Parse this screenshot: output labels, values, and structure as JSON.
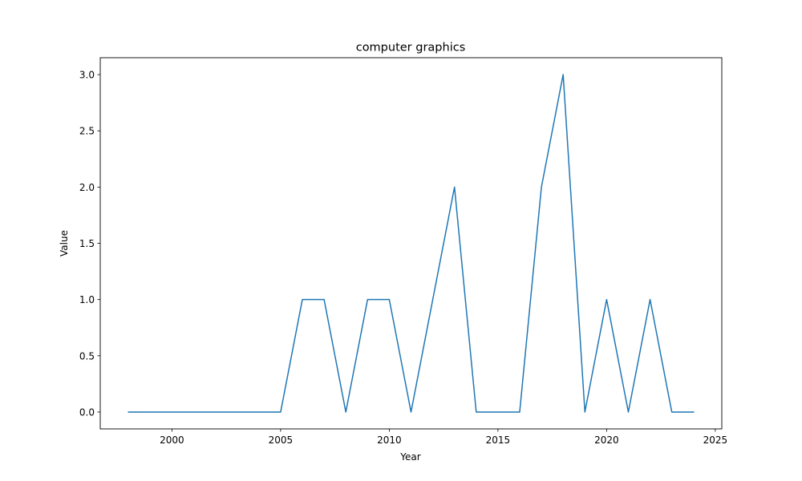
{
  "chart_data": {
    "type": "line",
    "title": "computer graphics",
    "xlabel": "Year",
    "ylabel": "Value",
    "xlim": [
      1996.7,
      2025.3
    ],
    "ylim": [
      -0.15,
      3.15
    ],
    "xticks": [
      2000,
      2005,
      2010,
      2015,
      2020,
      2025
    ],
    "yticks": [
      0.0,
      0.5,
      1.0,
      1.5,
      2.0,
      2.5,
      3.0
    ],
    "xtick_labels": [
      "2000",
      "2005",
      "2010",
      "2015",
      "2020",
      "2025"
    ],
    "ytick_labels": [
      "0.0",
      "0.5",
      "1.0",
      "1.5",
      "2.0",
      "2.5",
      "3.0"
    ],
    "grid": false,
    "series": [
      {
        "color": "#1f77b4",
        "x": [
          1998,
          1999,
          2000,
          2001,
          2002,
          2003,
          2004,
          2005,
          2006,
          2007,
          2008,
          2009,
          2010,
          2011,
          2012,
          2013,
          2014,
          2015,
          2016,
          2017,
          2018,
          2019,
          2020,
          2021,
          2022,
          2023,
          2024
        ],
        "y": [
          0,
          0,
          0,
          0,
          0,
          0,
          0,
          0,
          1,
          1,
          0,
          1,
          1,
          0,
          1,
          2,
          0,
          0,
          0,
          2,
          3,
          0,
          1,
          0,
          1,
          0,
          0
        ]
      }
    ]
  }
}
